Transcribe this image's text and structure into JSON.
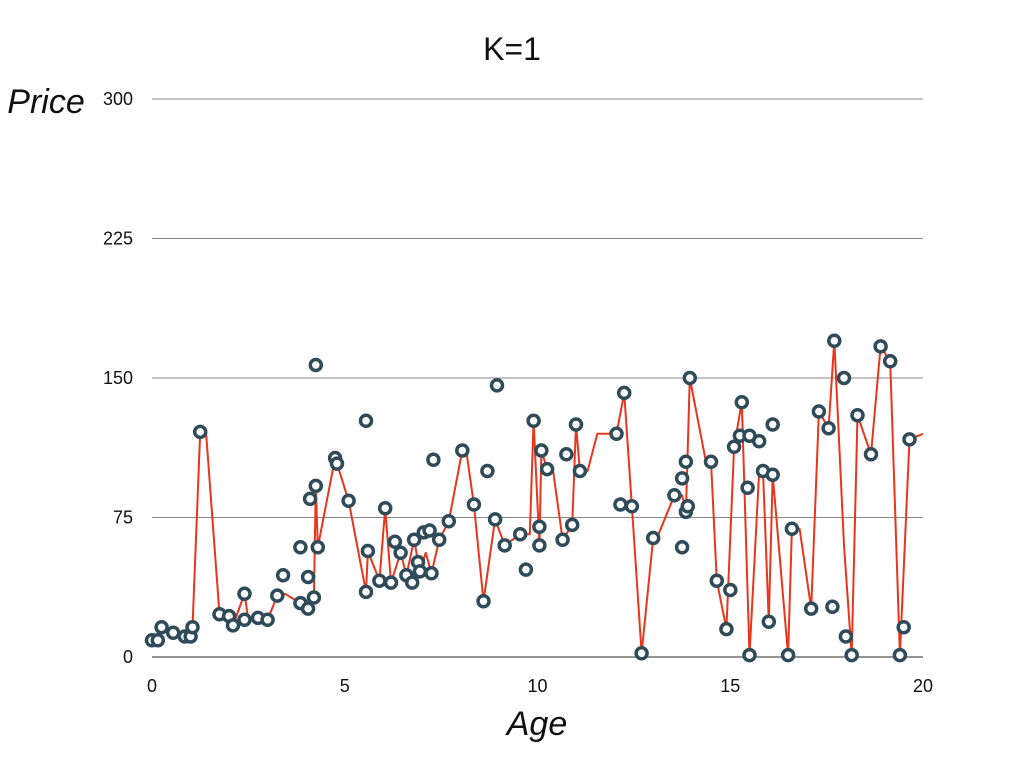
{
  "chart_data": {
    "type": "scatter",
    "title": "K=1",
    "xlabel": "Age",
    "ylabel": "Price",
    "xlim": [
      0,
      20
    ],
    "ylim": [
      0,
      300
    ],
    "x_ticks": [
      "0",
      "5",
      "10",
      "15",
      "20"
    ],
    "y_ticks": [
      "0",
      "75",
      "150",
      "225",
      "300"
    ],
    "grid": "horizontal",
    "colors": {
      "points_stroke": "#2f4b5a",
      "points_fill": "#ffffff",
      "line": "#e8351b",
      "grid": "#8a8a8a"
    },
    "points": [
      [
        0.0,
        9
      ],
      [
        0.15,
        9
      ],
      [
        0.25,
        16
      ],
      [
        0.55,
        13
      ],
      [
        0.85,
        11
      ],
      [
        1.0,
        11
      ],
      [
        1.05,
        16
      ],
      [
        1.25,
        121
      ],
      [
        1.75,
        23
      ],
      [
        2.0,
        22
      ],
      [
        2.1,
        17
      ],
      [
        2.4,
        34
      ],
      [
        2.4,
        20
      ],
      [
        2.75,
        21
      ],
      [
        3.0,
        20
      ],
      [
        3.25,
        33
      ],
      [
        3.4,
        44
      ],
      [
        3.85,
        59
      ],
      [
        3.85,
        29
      ],
      [
        4.05,
        43
      ],
      [
        4.05,
        26
      ],
      [
        4.2,
        32
      ],
      [
        4.1,
        85
      ],
      [
        4.25,
        92
      ],
      [
        4.3,
        59
      ],
      [
        4.25,
        157
      ],
      [
        4.75,
        107
      ],
      [
        4.8,
        104
      ],
      [
        5.1,
        84
      ],
      [
        5.55,
        35
      ],
      [
        5.55,
        127
      ],
      [
        5.6,
        57
      ],
      [
        5.9,
        41
      ],
      [
        6.05,
        80
      ],
      [
        6.2,
        40
      ],
      [
        6.3,
        62
      ],
      [
        6.45,
        56
      ],
      [
        6.6,
        44
      ],
      [
        6.75,
        40
      ],
      [
        6.8,
        63
      ],
      [
        6.9,
        51
      ],
      [
        6.95,
        46
      ],
      [
        7.05,
        67
      ],
      [
        7.2,
        68
      ],
      [
        7.25,
        45
      ],
      [
        7.3,
        106
      ],
      [
        7.45,
        63
      ],
      [
        7.7,
        73
      ],
      [
        8.05,
        111
      ],
      [
        8.35,
        82
      ],
      [
        8.6,
        30
      ],
      [
        8.7,
        100
      ],
      [
        8.9,
        74
      ],
      [
        8.95,
        146
      ],
      [
        9.15,
        60
      ],
      [
        9.55,
        66
      ],
      [
        9.7,
        47
      ],
      [
        9.9,
        127
      ],
      [
        10.05,
        60
      ],
      [
        10.05,
        70
      ],
      [
        10.1,
        111
      ],
      [
        10.25,
        101
      ],
      [
        10.65,
        63
      ],
      [
        10.75,
        109
      ],
      [
        10.9,
        71
      ],
      [
        11.0,
        125
      ],
      [
        11.1,
        100
      ],
      [
        12.05,
        120
      ],
      [
        12.15,
        82
      ],
      [
        12.25,
        142
      ],
      [
        12.45,
        81
      ],
      [
        12.7,
        2
      ],
      [
        13.0,
        64
      ],
      [
        13.55,
        87
      ],
      [
        13.75,
        59
      ],
      [
        13.75,
        96
      ],
      [
        13.85,
        78
      ],
      [
        13.85,
        105
      ],
      [
        13.9,
        81
      ],
      [
        13.95,
        150
      ],
      [
        14.5,
        105
      ],
      [
        14.65,
        41
      ],
      [
        14.9,
        15
      ],
      [
        15.0,
        36
      ],
      [
        15.1,
        113
      ],
      [
        15.25,
        119
      ],
      [
        15.3,
        137
      ],
      [
        15.5,
        119
      ],
      [
        15.45,
        91
      ],
      [
        15.5,
        1
      ],
      [
        15.75,
        116
      ],
      [
        15.85,
        100
      ],
      [
        16.0,
        19
      ],
      [
        16.1,
        98
      ],
      [
        16.1,
        125
      ],
      [
        16.5,
        1
      ],
      [
        16.6,
        69
      ],
      [
        17.1,
        26
      ],
      [
        17.3,
        132
      ],
      [
        17.55,
        123
      ],
      [
        17.65,
        27
      ],
      [
        17.7,
        170
      ],
      [
        17.95,
        150
      ],
      [
        18.0,
        11
      ],
      [
        18.15,
        1
      ],
      [
        18.3,
        130
      ],
      [
        18.65,
        109
      ],
      [
        18.9,
        167
      ],
      [
        19.15,
        159
      ],
      [
        19.4,
        1
      ],
      [
        19.5,
        16
      ],
      [
        19.65,
        117
      ]
    ],
    "fit_line": [
      [
        0.0,
        9
      ],
      [
        0.15,
        9
      ],
      [
        0.25,
        16
      ],
      [
        0.55,
        13
      ],
      [
        0.85,
        11
      ],
      [
        1.0,
        11
      ],
      [
        1.05,
        16
      ],
      [
        1.25,
        121
      ],
      [
        1.4,
        121
      ],
      [
        1.75,
        23
      ],
      [
        2.0,
        22
      ],
      [
        2.1,
        17
      ],
      [
        2.4,
        34
      ],
      [
        2.5,
        20
      ],
      [
        2.75,
        21
      ],
      [
        3.0,
        20
      ],
      [
        3.25,
        33
      ],
      [
        3.45,
        34
      ],
      [
        3.85,
        29
      ],
      [
        4.05,
        26
      ],
      [
        4.2,
        32
      ],
      [
        4.25,
        92
      ],
      [
        4.3,
        59
      ],
      [
        4.75,
        107
      ],
      [
        4.8,
        104
      ],
      [
        5.1,
        84
      ],
      [
        5.55,
        35
      ],
      [
        5.6,
        57
      ],
      [
        5.9,
        41
      ],
      [
        6.05,
        80
      ],
      [
        6.2,
        40
      ],
      [
        6.45,
        56
      ],
      [
        6.6,
        44
      ],
      [
        6.8,
        63
      ],
      [
        6.95,
        46
      ],
      [
        7.1,
        56
      ],
      [
        7.25,
        45
      ],
      [
        7.45,
        63
      ],
      [
        7.7,
        73
      ],
      [
        8.05,
        111
      ],
      [
        8.15,
        111
      ],
      [
        8.35,
        82
      ],
      [
        8.6,
        30
      ],
      [
        8.9,
        74
      ],
      [
        9.15,
        60
      ],
      [
        9.55,
        66
      ],
      [
        9.8,
        66
      ],
      [
        9.9,
        127
      ],
      [
        10.05,
        60
      ],
      [
        10.1,
        111
      ],
      [
        10.25,
        101
      ],
      [
        10.4,
        101
      ],
      [
        10.65,
        63
      ],
      [
        10.9,
        71
      ],
      [
        11.0,
        125
      ],
      [
        11.1,
        100
      ],
      [
        11.3,
        100
      ],
      [
        11.55,
        120
      ],
      [
        12.05,
        120
      ],
      [
        12.25,
        142
      ],
      [
        12.45,
        81
      ],
      [
        12.7,
        2
      ],
      [
        13.0,
        64
      ],
      [
        13.1,
        64
      ],
      [
        13.55,
        87
      ],
      [
        13.75,
        87
      ],
      [
        13.85,
        78
      ],
      [
        13.95,
        150
      ],
      [
        14.35,
        107
      ],
      [
        14.5,
        105
      ],
      [
        14.65,
        41
      ],
      [
        14.9,
        15
      ],
      [
        15.1,
        113
      ],
      [
        15.3,
        137
      ],
      [
        15.5,
        1
      ],
      [
        15.75,
        100
      ],
      [
        15.85,
        100
      ],
      [
        16.0,
        19
      ],
      [
        16.1,
        98
      ],
      [
        16.5,
        1
      ],
      [
        16.6,
        69
      ],
      [
        16.8,
        69
      ],
      [
        17.1,
        26
      ],
      [
        17.3,
        132
      ],
      [
        17.55,
        123
      ],
      [
        17.7,
        170
      ],
      [
        17.95,
        60
      ],
      [
        18.15,
        1
      ],
      [
        18.3,
        130
      ],
      [
        18.65,
        109
      ],
      [
        18.9,
        167
      ],
      [
        19.15,
        159
      ],
      [
        19.4,
        1
      ],
      [
        19.65,
        117
      ],
      [
        20.0,
        120
      ]
    ]
  }
}
